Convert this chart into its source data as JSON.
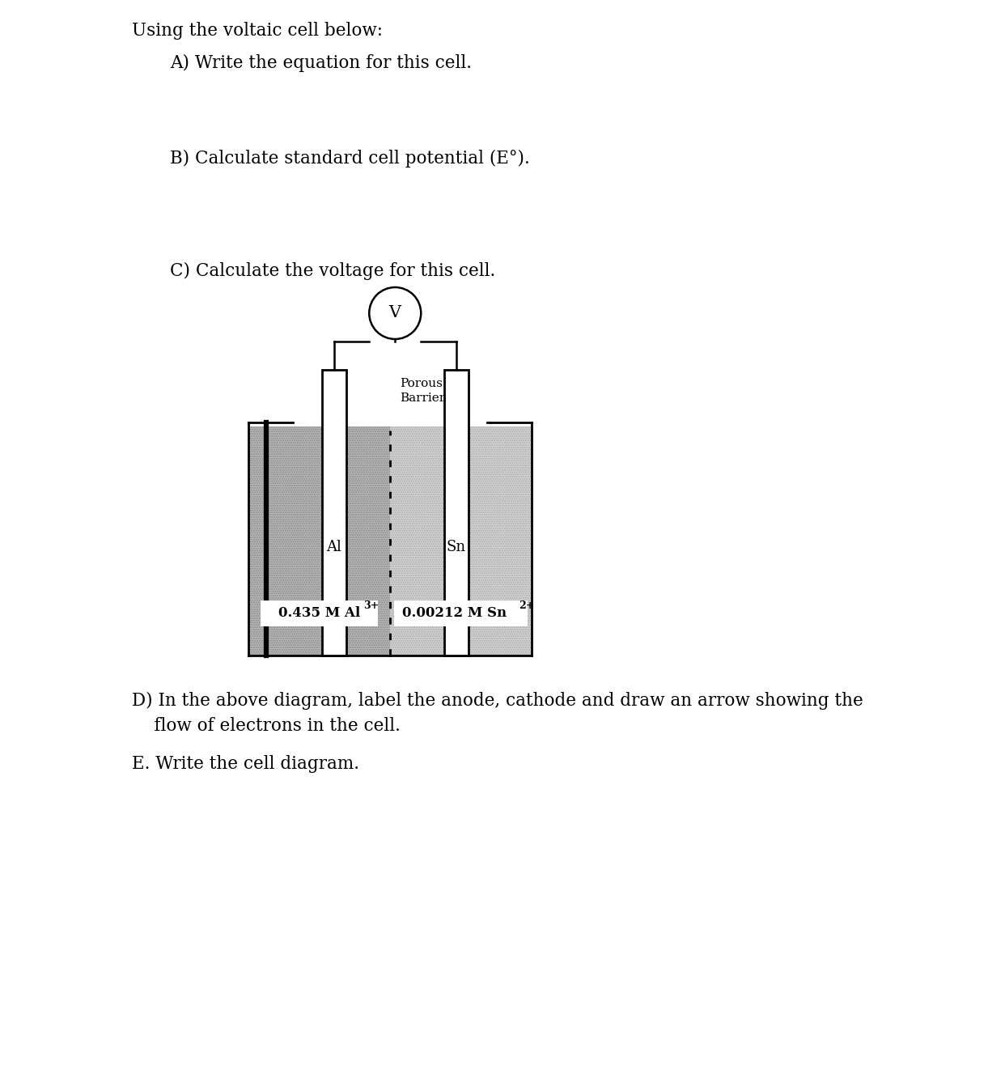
{
  "title": "Using the voltaic cell below:",
  "question_a": "A) Write the equation for this cell.",
  "question_b": "B) Calculate standard cell potential (E°).",
  "question_c": "C) Calculate the voltage for this cell.",
  "question_d": "D) In the above diagram, label the anode, cathode and draw an arrow showing the\n    flow of electrons in the cell.",
  "question_e": "E. Write the cell diagram.",
  "left_electrode_label": "Al",
  "right_electrode_label": "Sn",
  "left_solution_label": "0.435 M Al",
  "left_solution_superscript": "3+",
  "right_solution_label": "0.00212 M Sn",
  "right_solution_superscript": "2+",
  "porous_barrier_label_line1": "Porous",
  "porous_barrier_label_line2": "Barrier",
  "voltmeter_label": "V",
  "bg_color": "#ffffff",
  "text_color": "#000000",
  "lc": "#000000",
  "left_sol_color": "#b8b8b8",
  "right_sol_color": "#d4d4d4"
}
